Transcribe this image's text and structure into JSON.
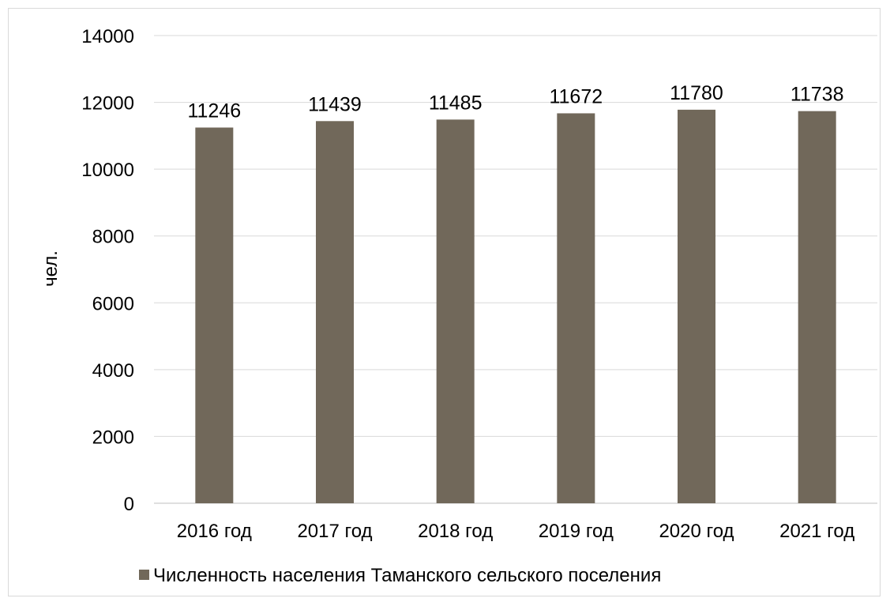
{
  "chart_data": {
    "type": "bar",
    "categories": [
      "2016 год",
      "2017 год",
      "2018 год",
      "2019 год",
      "2020 год",
      "2021 год"
    ],
    "series": [
      {
        "name": "Численность населения Таманского сельского поселения",
        "values": [
          11246,
          11439,
          11485,
          11672,
          11780,
          11738
        ],
        "color": "#71685a"
      }
    ],
    "ylabel": "чел.",
    "ylim": [
      0,
      14000
    ],
    "yticks": [
      "0",
      "2000",
      "4000",
      "6000",
      "8000",
      "10000",
      "12000",
      "14000"
    ],
    "grid": true,
    "legend": "bottom",
    "data_labels": [
      "11246",
      "11439",
      "11485",
      "11672",
      "11780",
      "11738"
    ]
  }
}
